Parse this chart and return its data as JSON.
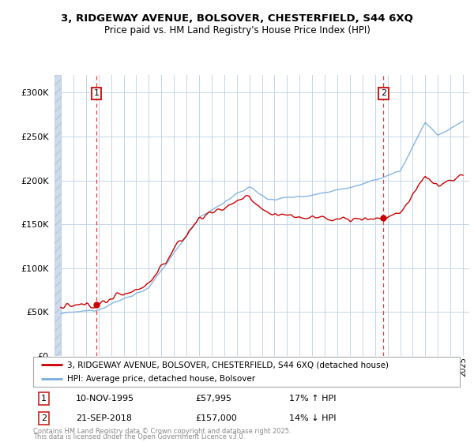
{
  "title1": "3, RIDGEWAY AVENUE, BOLSOVER, CHESTERFIELD, S44 6XQ",
  "title2": "Price paid vs. HM Land Registry's House Price Index (HPI)",
  "sale1_date": "10-NOV-1995",
  "sale1_price": 57995,
  "sale1_label": "17% ↑ HPI",
  "sale2_date": "21-SEP-2018",
  "sale2_price": 157000,
  "sale2_label": "14% ↓ HPI",
  "legend1": "3, RIDGEWAY AVENUE, BOLSOVER, CHESTERFIELD, S44 6XQ (detached house)",
  "legend2": "HPI: Average price, detached house, Bolsover",
  "footer1": "Contains HM Land Registry data © Crown copyright and database right 2025.",
  "footer2": "This data is licensed under the Open Government Licence v3.0.",
  "hpi_color": "#7aade0",
  "price_color": "#cc0000",
  "vline_color": "#dd4444",
  "ylim_max": 320000,
  "xlim_start": 1992.5,
  "xlim_end": 2025.5,
  "sale1_t": 1995.833,
  "sale2_t": 2018.667
}
